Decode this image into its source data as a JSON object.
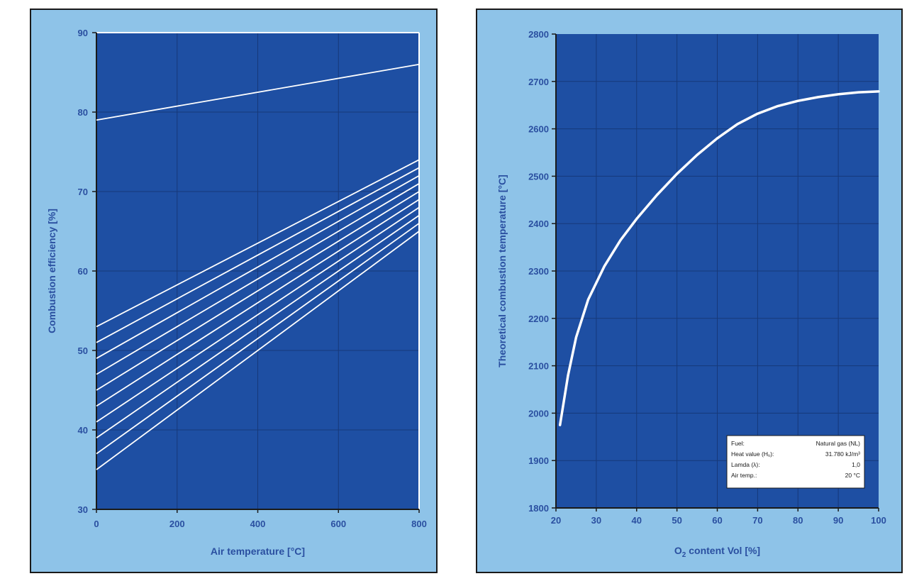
{
  "chart_data": [
    {
      "type": "line",
      "title": "",
      "xlabel": "Air temperature [°C]",
      "ylabel": "Combustion efficiency [%]",
      "xlim": [
        0,
        800
      ],
      "ylim": [
        30,
        90
      ],
      "xticks": [
        "0",
        "200",
        "400",
        "600",
        "800"
      ],
      "yticks": [
        "30",
        "40",
        "50",
        "60",
        "70",
        "80",
        "90"
      ],
      "grid": true,
      "colors": {
        "plot_bg": "#1e4fa3",
        "line": "#ffffff",
        "frame": "#8ec3e8",
        "text": "#2a4fa0"
      },
      "x": [
        0,
        800
      ],
      "series": [
        {
          "values": [
            79,
            86
          ]
        },
        {
          "values": [
            53,
            74
          ]
        },
        {
          "values": [
            51,
            73
          ]
        },
        {
          "values": [
            49,
            72
          ]
        },
        {
          "values": [
            47,
            71
          ]
        },
        {
          "values": [
            45,
            70
          ]
        },
        {
          "values": [
            43,
            69
          ]
        },
        {
          "values": [
            41,
            68
          ]
        },
        {
          "values": [
            39,
            67
          ]
        },
        {
          "values": [
            37,
            66
          ]
        },
        {
          "values": [
            35,
            65
          ]
        }
      ]
    },
    {
      "type": "line",
      "title": "",
      "xlabel_main": "O",
      "xlabel_sub": "2",
      "xlabel_rest": " content Vol [%]",
      "ylabel": "Theoretical combustion temperature [°C]",
      "xlim": [
        20,
        100
      ],
      "ylim": [
        1800,
        2800
      ],
      "xticks": [
        "20",
        "30",
        "40",
        "50",
        "60",
        "70",
        "80",
        "90",
        "100"
      ],
      "yticks": [
        "1800",
        "1900",
        "2000",
        "2100",
        "2200",
        "2300",
        "2400",
        "2500",
        "2600",
        "2700",
        "2800"
      ],
      "grid": true,
      "colors": {
        "plot_bg": "#1e4fa3",
        "line": "#ffffff",
        "frame": "#8ec3e8",
        "text": "#2a4fa0"
      },
      "series": [
        {
          "x": [
            21,
            23,
            25,
            28,
            32,
            36,
            40,
            45,
            50,
            55,
            60,
            65,
            70,
            75,
            80,
            85,
            90,
            95,
            100
          ],
          "values": [
            1975,
            2080,
            2160,
            2240,
            2310,
            2365,
            2410,
            2460,
            2505,
            2545,
            2580,
            2610,
            2632,
            2648,
            2659,
            2667,
            2673,
            2677,
            2679
          ]
        }
      ],
      "legend": {
        "placement": "bottom-right",
        "rows": [
          [
            "Fuel:",
            "Natural gas (NL)"
          ],
          [
            "Heat value (Hᵤ):",
            "31.780 kJ/m³"
          ],
          [
            "Lamda (λ):",
            "1,0"
          ],
          [
            "Air temp.:",
            "20 °C"
          ]
        ]
      }
    }
  ]
}
